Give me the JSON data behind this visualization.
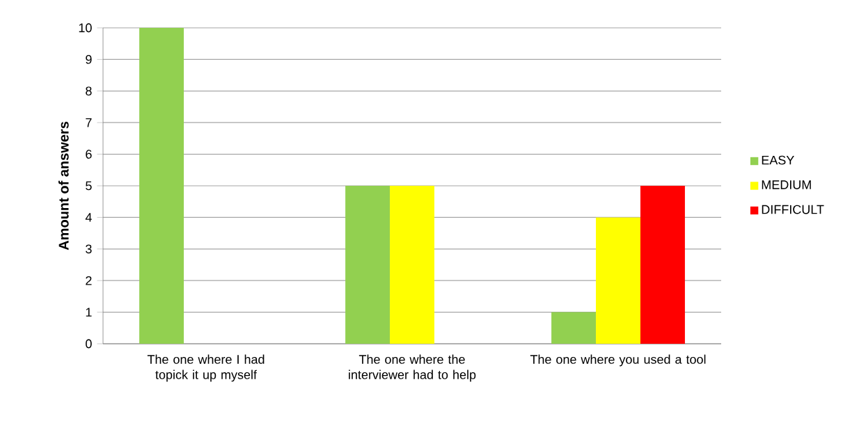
{
  "chart_data": {
    "type": "bar",
    "ylabel": "Amount of answers",
    "categories": [
      "The one where I had topick it up myself",
      "The one where the interviewer had to help",
      "The one where you used a tool"
    ],
    "series": [
      {
        "name": "EASY",
        "color": "#92d050",
        "values": [
          10,
          5,
          1
        ]
      },
      {
        "name": "MEDIUM",
        "color": "#ffff00",
        "values": [
          0,
          5,
          4
        ]
      },
      {
        "name": "DIFFICULT",
        "color": "#ff0000",
        "values": [
          0,
          0,
          5
        ]
      }
    ],
    "ylim": [
      0,
      10
    ],
    "yticks": [
      0,
      1,
      2,
      3,
      4,
      5,
      6,
      7,
      8,
      9,
      10
    ],
    "grid": "y",
    "legend": "right"
  }
}
